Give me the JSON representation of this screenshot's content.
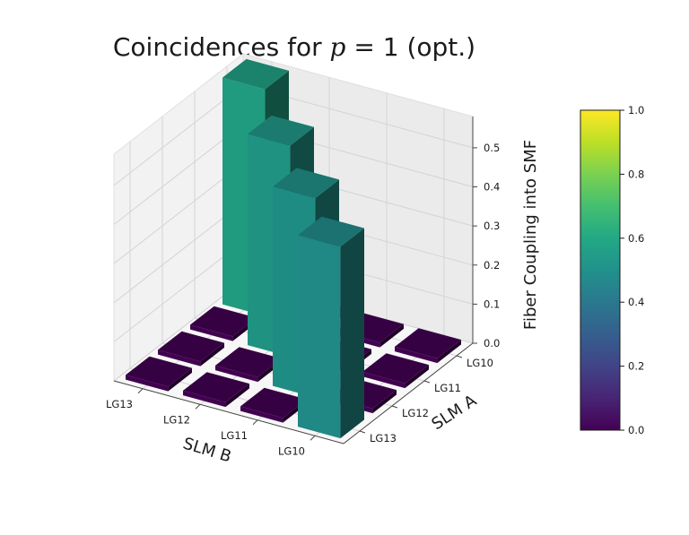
{
  "chart_data": {
    "type": "bar3d",
    "title_prefix": "Coincidences for",
    "title_var": "p",
    "title_rel": "= 1",
    "title_suffix": "(opt.)",
    "xlabel": "SLM B",
    "ylabel": "SLM A",
    "zlabel": "Fiber Coupling into SMF",
    "x_categories": [
      "LG10",
      "LG11",
      "LG12",
      "LG13"
    ],
    "y_categories": [
      "LG10",
      "LG11",
      "LG12",
      "LG13"
    ],
    "zticks": [
      "0.0",
      "0.1",
      "0.2",
      "0.3",
      "0.4",
      "0.5"
    ],
    "zlim": [
      0,
      0.58
    ],
    "grid": true,
    "colormap": "viridis",
    "colorbar": {
      "ticks": [
        "0.0",
        "0.2",
        "0.4",
        "0.6",
        "0.8",
        "1.0"
      ],
      "range": [
        0,
        1
      ]
    },
    "values": [
      [
        0.49,
        0.0,
        0.0,
        0.0
      ],
      [
        0.0,
        0.51,
        0.0,
        0.0
      ],
      [
        0.0,
        0.0,
        0.54,
        0.0
      ],
      [
        0.0,
        0.0,
        0.0,
        0.58
      ]
    ]
  }
}
